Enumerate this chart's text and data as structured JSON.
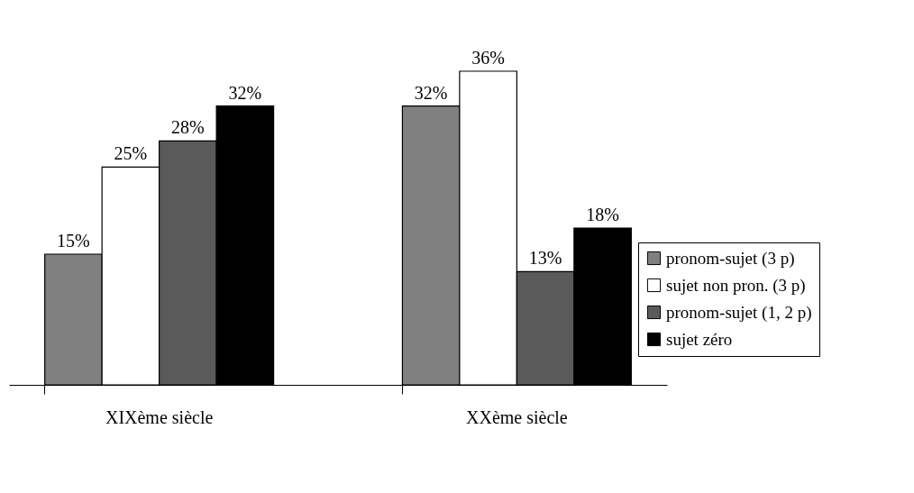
{
  "chart_data": {
    "type": "bar",
    "categories": [
      "XIXème siècle",
      "XXème siècle"
    ],
    "series": [
      {
        "name": "pronom-sujet (3 p)",
        "color": "#808080",
        "values": [
          15,
          32
        ],
        "value_labels": [
          "15%",
          "32%"
        ]
      },
      {
        "name": "sujet non pron. (3 p)",
        "color": "#ffffff",
        "values": [
          25,
          36
        ],
        "value_labels": [
          "25%",
          "36%"
        ]
      },
      {
        "name": "pronom-sujet (1, 2 p)",
        "color": "#5a5a5a",
        "values": [
          28,
          13
        ],
        "value_labels": [
          "28%",
          "13%"
        ]
      },
      {
        "name": "sujet zéro",
        "color": "#000000",
        "values": [
          32,
          18
        ],
        "value_labels": [
          "32%",
          "18%"
        ]
      }
    ],
    "legend": "right"
  }
}
